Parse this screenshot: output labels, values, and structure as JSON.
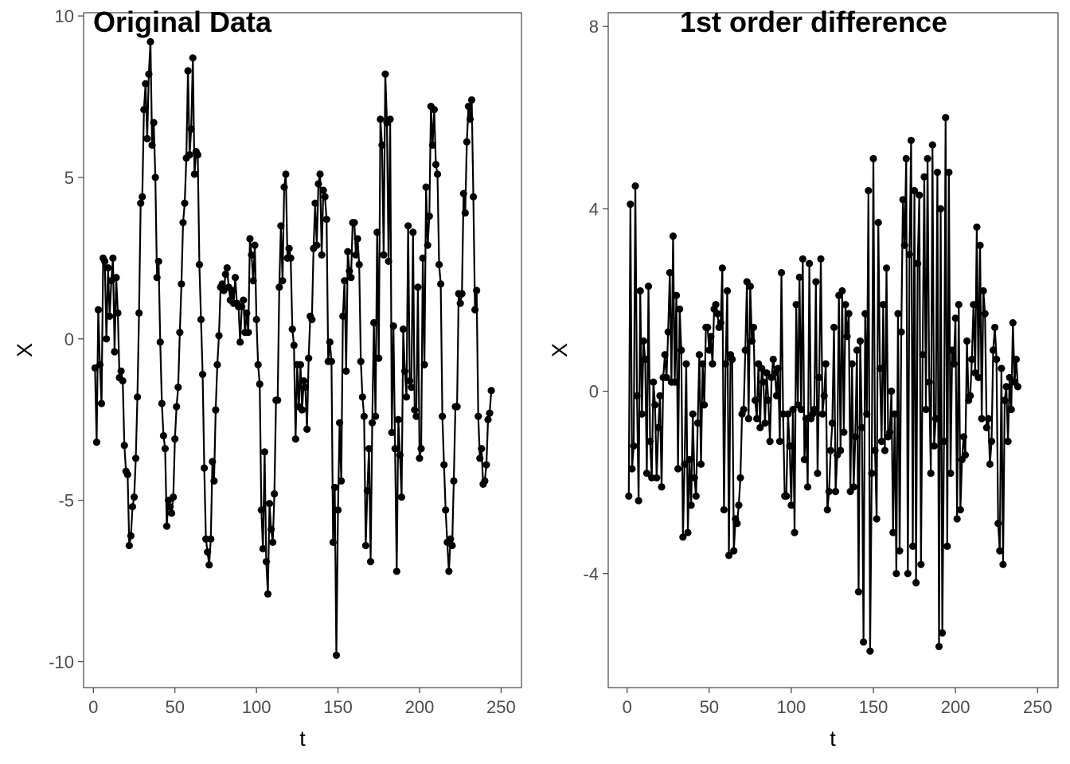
{
  "chart_data": [
    {
      "type": "line",
      "title": "Original Data",
      "xlabel": "t",
      "ylabel": "X",
      "xlim": [
        -6,
        262.5
      ],
      "ylim": [
        -10.8,
        10.1
      ],
      "xticks": [
        0,
        50,
        100,
        150,
        200,
        250
      ],
      "yticks": [
        -10,
        -5,
        0,
        5,
        10
      ],
      "xtick_labels": [
        "0",
        "50",
        "100",
        "150",
        "200",
        "250"
      ],
      "ytick_labels": [
        "-10",
        "-5",
        "0",
        "5",
        "10"
      ],
      "grid": false,
      "markers": true,
      "color": "#000000",
      "x_start": 1,
      "values": [
        -0.9,
        -3.2,
        0.9,
        -0.8,
        -2.0,
        2.5,
        2.4,
        0.0,
        2.2,
        0.7,
        1.8,
        2.5,
        -0.4,
        1.9,
        0.8,
        -1.2,
        -1.0,
        -1.3,
        -3.3,
        -4.1,
        -4.2,
        -6.4,
        -6.1,
        -5.2,
        -4.9,
        -3.7,
        -1.8,
        0.8,
        4.2,
        4.4,
        7.1,
        7.9,
        6.2,
        8.2,
        9.2,
        6.0,
        6.7,
        5.0,
        1.9,
        2.4,
        -0.1,
        -2.0,
        -3.0,
        -3.4,
        -5.8,
        -5.0,
        -5.2,
        -5.4,
        -4.9,
        -3.1,
        -2.1,
        -1.5,
        0.2,
        1.7,
        3.6,
        4.2,
        5.6,
        8.3,
        5.7,
        6.5,
        8.7,
        5.1,
        5.8,
        5.7,
        2.3,
        0.6,
        -1.1,
        -4.0,
        -6.2,
        -6.6,
        -7.0,
        -6.2,
        -3.8,
        -4.4,
        -2.2,
        -0.8,
        0.1,
        1.6,
        1.7,
        1.5,
        2.0,
        2.2,
        1.6,
        1.2,
        1.5,
        1.1,
        1.9,
        1.1,
        1.0,
        -0.1,
        1.0,
        1.2,
        0.2,
        0.8,
        0.2,
        3.1,
        2.6,
        1.8,
        2.9,
        0.6,
        -0.8,
        -1.4,
        -5.3,
        -6.5,
        -3.5,
        -6.9,
        -7.9,
        -5.1,
        -5.9,
        -6.3,
        -4.8,
        -1.9,
        -1.9,
        1.6,
        3.5,
        1.8,
        4.7,
        5.1,
        2.5,
        2.8,
        2.5,
        0.3,
        -0.2,
        -3.1,
        -0.8,
        -2.1,
        -0.8,
        -2.2,
        -1.3,
        -1.5,
        -2.8,
        -0.6,
        0.7,
        0.6,
        2.8,
        4.2,
        2.9,
        4.8,
        5.1,
        2.6,
        4.6,
        4.4,
        3.7,
        -0.7,
        -0.1,
        -0.7,
        -6.3,
        -4.6,
        -9.8,
        -5.3,
        -2.6,
        -4.4,
        0.7,
        1.8,
        -1.0,
        2.7,
        2.1,
        1.9,
        3.6,
        3.6,
        2.6,
        3.1,
        2.3,
        -0.7,
        -1.8,
        -2.4,
        -6.4,
        -4.7,
        -3.4,
        -6.9,
        -2.6,
        0.5,
        -2.4,
        3.3,
        -0.6,
        6.8,
        6.0,
        2.6,
        8.2,
        6.7,
        2.4,
        6.8,
        -2.9,
        0.4,
        -3.4,
        -7.2,
        -2.5,
        -3.6,
        -4.9,
        0.3,
        -1.0,
        -1.8,
        3.5,
        -1.3,
        -1.5,
        3.3,
        -2.2,
        -2.4,
        1.6,
        -3.7,
        -3.4,
        2.5,
        -0.8,
        4.7,
        2.9,
        3.8,
        7.2,
        6.0,
        7.1,
        5.4,
        5.1,
        2.3,
        1.7,
        -2.4,
        -3.9,
        -5.3,
        -6.3,
        -7.2,
        -6.2,
        -6.4,
        -4.4,
        -2.1,
        -2.1,
        1.4,
        1.1,
        1.4,
        4.5,
        3.9,
        6.1,
        7.2,
        6.8,
        7.4,
        4.4,
        0.9,
        1.5,
        -2.4,
        -3.7,
        -3.4,
        -4.5,
        -4.4,
        -3.9,
        -2.5,
        -2.3,
        -1.6
      ]
    },
    {
      "type": "line",
      "title": "1st order difference",
      "xlabel": "t",
      "ylabel": "X",
      "xlim": [
        -11.5,
        262.5
      ],
      "ylim": [
        -6.5,
        8.3
      ],
      "xticks": [
        0,
        50,
        100,
        150,
        200,
        250
      ],
      "yticks": [
        -4,
        0,
        4,
        8
      ],
      "xtick_labels": [
        "0",
        "50",
        "100",
        "150",
        "200",
        "250"
      ],
      "ytick_labels": [
        "-4",
        "0",
        "4",
        "8"
      ],
      "grid": false,
      "markers": true,
      "color": "#000000",
      "x_start": 1,
      "values": [
        -2.3,
        4.1,
        -1.7,
        -1.2,
        4.5,
        -0.1,
        -2.4,
        2.2,
        -0.5,
        1.1,
        0.7,
        -1.8,
        2.3,
        -1.1,
        -1.9,
        0.2,
        -0.3,
        -1.9,
        -0.8,
        -0.1,
        -2.1,
        0.3,
        0.8,
        0.3,
        1.3,
        2.6,
        0.2,
        3.4,
        0.2,
        2.1,
        -1.7,
        1.8,
        0.9,
        -3.2,
        -1.6,
        0.6,
        -3.1,
        -1.5,
        -2.5,
        -0.5,
        -1.9,
        -2.3,
        -0.7,
        0.8,
        -1.6,
        0.6,
        -0.3,
        1.4,
        1.4,
        0.9,
        1.2,
        0.6,
        1.8,
        1.9,
        1.7,
        1.4,
        1.5,
        2.7,
        -2.6,
        0.6,
        2.2,
        -3.6,
        0.8,
        0.7,
        -3.5,
        -2.8,
        -2.9,
        -2.5,
        -1.9,
        -0.5,
        -0.4,
        0.9,
        2.4,
        -0.6,
        2.3,
        1.1,
        1.4,
        -0.2,
        -0.6,
        0.6,
        -0.8,
        0.5,
        0.2,
        -0.7,
        0.4,
        -0.2,
        -1.1,
        0.3,
        0.7,
        0.4,
        -0.1,
        0.5,
        -1.1,
        2.6,
        -0.5,
        -2.3,
        -2.3,
        -0.5,
        -1.2,
        -2.5,
        -0.4,
        -3.1,
        1.9,
        -0.3,
        2.5,
        -0.4,
        2.9,
        -1.5,
        -0.6,
        -2.1,
        2.8,
        -0.6,
        -0.5,
        -0.4,
        2.4,
        -1.8,
        0.3,
        2.9,
        -0.5,
        -0.1,
        0.6,
        -2.6,
        -2.2,
        -1.3,
        -0.7,
        1.4,
        -2.2,
        -1.4,
        2.1,
        -1.3,
        2.2,
        -0.9,
        1.9,
        1.2,
        1.7,
        -2.2,
        0.6,
        -2.1,
        -1.0,
        0.9,
        -4.4,
        1.1,
        -0.8,
        -5.5,
        1.7,
        -0.5,
        4.4,
        -5.7,
        -1.8,
        5.1,
        -1.3,
        -2.8,
        3.7,
        0.5,
        -1.1,
        1.9,
        -1.3,
        2.7,
        -1.0,
        -0.9,
        0.0,
        -3.1,
        -0.5,
        -4.0,
        1.7,
        -3.5,
        1.3,
        4.2,
        3.2,
        5.1,
        -4.0,
        3.0,
        5.5,
        -3.4,
        4.4,
        -4.2,
        2.8,
        4.3,
        -3.8,
        0.8,
        4.7,
        -0.4,
        5.1,
        0.2,
        -1.8,
        5.4,
        -1.2,
        -0.6,
        4.8,
        -5.6,
        4.0,
        -5.3,
        -1.1,
        6.0,
        -3.4,
        4.8,
        -1.8,
        0.9,
        0.6,
        1.6,
        -2.8,
        1.9,
        -2.6,
        -1.5,
        -1.0,
        -1.4,
        1.1,
        -0.2,
        -0.1,
        0.7,
        1.9,
        0.4,
        3.6,
        0.3,
        3.2,
        -0.6,
        2.2,
        1.7,
        -0.8,
        -0.6,
        -1.6,
        -1.1,
        0.9,
        1.4,
        0.7,
        -2.9,
        -3.5,
        0.5,
        -3.8,
        -0.2,
        0.1,
        -1.1,
        0.3,
        -0.4,
        1.5,
        0.2,
        0.7,
        0.1
      ]
    }
  ]
}
